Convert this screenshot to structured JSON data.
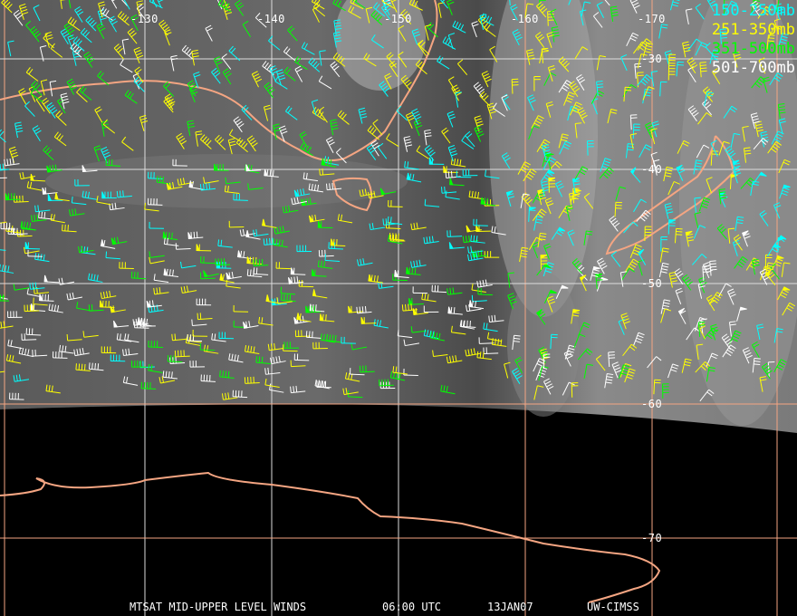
{
  "map": {
    "longitude_labels": [
      "-130",
      "-140",
      "-150",
      "-160",
      "-170"
    ],
    "latitude_labels": [
      "-30",
      "-40",
      "-50",
      "-60",
      "-70"
    ],
    "grid_color": "#ffffff",
    "coastline_color": "#f4a582"
  },
  "legend": [
    {
      "label": "150-250mb",
      "color": "#00ffff"
    },
    {
      "label": "251-350mb",
      "color": "#ffff00"
    },
    {
      "label": "351-500mb",
      "color": "#00ff00"
    },
    {
      "label": "501-700mb",
      "color": "#ffffff"
    }
  ],
  "caption": {
    "product": "MTSAT MID-UPPER LEVEL WINDS",
    "time": "06:00 UTC",
    "date": "13JAN07",
    "source": "UW-CIMSS"
  }
}
